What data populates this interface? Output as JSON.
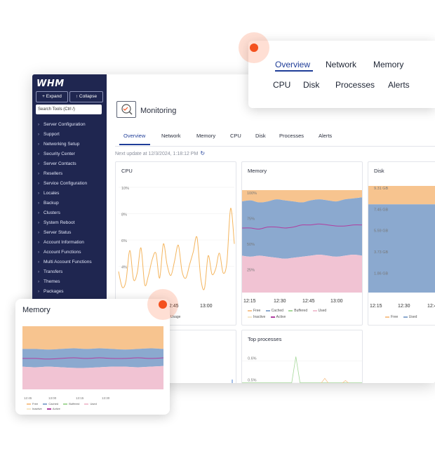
{
  "app": {
    "logo": "WHM"
  },
  "sidebar": {
    "expand_label": "+ Expand",
    "collapse_label": "↑ Collapse",
    "search_placeholder": "Search Tools (Ctrl /)",
    "items": [
      {
        "label": "Server Configuration"
      },
      {
        "label": "Support"
      },
      {
        "label": "Networking Setup"
      },
      {
        "label": "Security Center"
      },
      {
        "label": "Server Contacts"
      },
      {
        "label": "Resellers"
      },
      {
        "label": "Service Configuration"
      },
      {
        "label": "Locales"
      },
      {
        "label": "Backup"
      },
      {
        "label": "Clusters"
      },
      {
        "label": "System Reboot"
      },
      {
        "label": "Server Status"
      },
      {
        "label": "Account Information"
      },
      {
        "label": "Account Functions"
      },
      {
        "label": "Multi Account Functions"
      },
      {
        "label": "Transfers"
      },
      {
        "label": "Themes"
      },
      {
        "label": "Packages"
      }
    ]
  },
  "page": {
    "title": "Monitoring",
    "tabs": [
      "Overview",
      "Network",
      "Memory",
      "CPU",
      "Disk",
      "Processes",
      "Alerts"
    ],
    "active_tab": "Overview",
    "update_text": "Next update at 12/3/2024, 1:18:12 PM"
  },
  "cards": {
    "cpu": {
      "title": "CPU",
      "legend": [
        "Usage"
      ]
    },
    "memory": {
      "title": "Memory",
      "legend": [
        "Free",
        "Cached",
        "Buffered",
        "Used",
        "Inactive",
        "Active"
      ]
    },
    "disk": {
      "title": "Disk",
      "legend": [
        "Free",
        "Used"
      ]
    },
    "top_processes": {
      "title": "Top processes"
    }
  },
  "popup_tabs": {
    "row1": [
      "Overview",
      "Network",
      "Memory"
    ],
    "row2": [
      "CPU",
      "Disk",
      "Processes",
      "Alerts"
    ]
  },
  "popup_memory": {
    "title": "Memory",
    "x_ticks": [
      "12:45",
      "13:00",
      "13:15",
      "13:30"
    ],
    "legend": [
      "Free",
      "Cached",
      "Buffered",
      "Used",
      "Inactive",
      "Active"
    ]
  },
  "colors": {
    "sidebar_bg": "#1f2650",
    "accent": "#1f3d98",
    "free": "#f7c48f",
    "cached": "#8ba9cf",
    "buffered": "#a6d89a",
    "used": "#f1c3d3",
    "active": "#b03ea0",
    "cpu_line": "#f4b55e",
    "hotspot": "#f4511e"
  },
  "chart_data": [
    {
      "type": "line",
      "title": "CPU",
      "x_ticks": [
        "12:45",
        "13:00"
      ],
      "y_ticks": [
        "10%",
        "8%",
        "6%",
        "4%"
      ],
      "ylim": [
        2,
        10
      ],
      "series": [
        {
          "name": "Usage",
          "values": [
            3.6,
            2.4,
            2.9,
            5.2,
            3.0,
            3.5,
            5.4,
            2.6,
            3.3,
            4.5,
            5.0,
            3.1,
            5.7,
            4.1,
            3.3,
            4.4,
            5.6,
            3.6,
            3.1,
            4.1,
            5.1,
            6.2,
            3.1,
            2.3,
            4.8,
            3.4,
            3.8,
            5.0,
            3.5,
            4.3,
            8.4,
            5.7
          ]
        }
      ]
    },
    {
      "type": "area",
      "title": "Memory",
      "x_ticks": [
        "12:15",
        "12:30",
        "12:45",
        "13:00"
      ],
      "y_ticks": [
        "100%",
        "75%",
        "50%",
        "25%"
      ],
      "ylim": [
        0,
        100
      ],
      "series": [
        {
          "name": "Used",
          "values": [
            36,
            35,
            36,
            35,
            34,
            33,
            34,
            35,
            36,
            37,
            36,
            35,
            36,
            37,
            36
          ]
        },
        {
          "name": "Cached",
          "values": [
            89,
            90,
            88,
            89,
            91,
            90,
            89,
            88,
            90,
            91,
            90,
            89,
            91,
            92,
            93
          ]
        },
        {
          "name": "Free",
          "values": [
            100,
            100,
            100,
            100,
            100,
            100,
            100,
            100,
            100,
            100,
            100,
            100,
            100,
            100,
            100
          ]
        },
        {
          "name": "Active",
          "values": [
            63,
            63,
            62,
            64,
            64,
            63,
            64,
            66,
            66,
            67,
            66,
            65,
            65,
            66,
            66
          ]
        }
      ]
    },
    {
      "type": "area",
      "title": "Disk",
      "x_ticks": [
        "12:15",
        "12:30",
        "12:4"
      ],
      "y_ticks": [
        "9.31 GB",
        "7.45 GB",
        "5.59 GB",
        "3.73 GB",
        "1.86 GB"
      ],
      "ylim": [
        0,
        9.31
      ],
      "series": [
        {
          "name": "Used",
          "values": [
            7.7,
            7.7,
            7.7,
            7.7,
            7.7,
            7.7,
            7.7,
            7.7,
            7.7,
            7.7
          ]
        },
        {
          "name": "Free",
          "values": [
            9.31,
            9.31,
            9.31,
            9.31,
            9.31,
            9.31,
            9.31,
            9.31,
            9.31,
            9.31
          ]
        }
      ]
    },
    {
      "type": "line",
      "title": "Top processes",
      "y_ticks": [
        "0.6%",
        "0.5%"
      ],
      "ylim": [
        0.45,
        0.65
      ],
      "series": [
        {
          "values": [
            0.5,
            0.5,
            0.5,
            0.5,
            0.5,
            0.5,
            0.5,
            0.5,
            0.5,
            0.5,
            0.5,
            0.5,
            0.5,
            0.62,
            0.5,
            0.5,
            0.5,
            0.5,
            0.5,
            0.5,
            0.5,
            0.5,
            0.5,
            0.5,
            0.5,
            0.5,
            0.5,
            0.5,
            0.5,
            0.5
          ]
        },
        {
          "values": [
            0.495,
            0.495,
            0.495,
            0.495,
            0.495,
            0.495,
            0.495,
            0.495,
            0.495,
            0.495,
            0.495,
            0.495,
            0.495,
            0.495,
            0.495,
            0.495,
            0.495,
            0.495,
            0.495,
            0.495,
            0.52,
            0.495,
            0.495,
            0.495,
            0.495,
            0.51,
            0.495,
            0.495,
            0.495,
            0.495
          ]
        }
      ]
    },
    {
      "type": "area",
      "title": "Memory",
      "x_ticks": [
        "12:45",
        "13:00",
        "13:15",
        "13:30"
      ],
      "ylim": [
        0,
        100
      ],
      "series": [
        {
          "name": "Used",
          "values": [
            36,
            35,
            36,
            35,
            34,
            34,
            35,
            36,
            36,
            35,
            36,
            37
          ]
        },
        {
          "name": "Cached",
          "values": [
            64,
            64,
            63,
            64,
            65,
            64,
            65,
            64,
            63,
            64,
            65,
            64
          ]
        },
        {
          "name": "Free",
          "values": [
            100,
            100,
            100,
            100,
            100,
            100,
            100,
            100,
            100,
            100,
            100,
            100
          ]
        },
        {
          "name": "Active",
          "values": [
            49,
            49,
            48,
            49,
            50,
            49,
            50,
            49,
            49,
            50,
            49,
            50
          ]
        }
      ]
    }
  ]
}
